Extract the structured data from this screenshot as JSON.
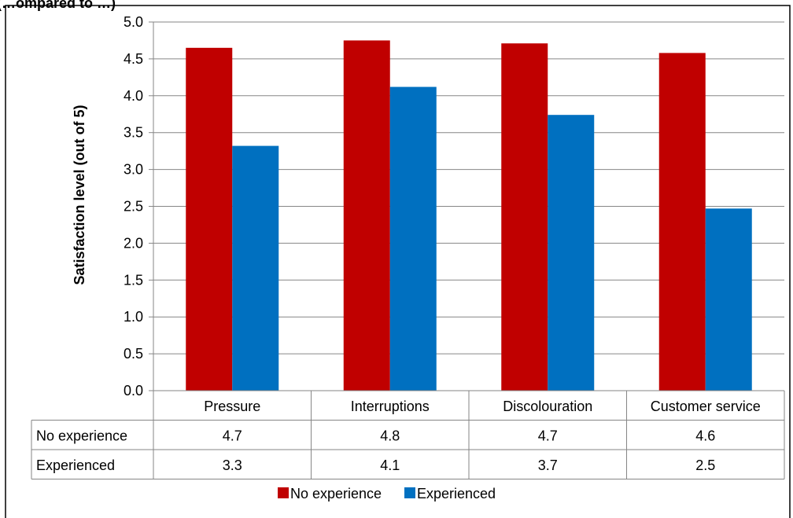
{
  "chart_data": {
    "type": "bar",
    "title": "(…ompared to …)",
    "ylabel": "Satisfaction level (out of 5)",
    "xlabel": "",
    "ylim": [
      0,
      5
    ],
    "y_ticks": [
      "0.0",
      "0.5",
      "1.0",
      "1.5",
      "2.0",
      "2.5",
      "3.0",
      "3.5",
      "4.0",
      "4.5",
      "5.0"
    ],
    "grid": true,
    "legend_position": "bottom",
    "categories": [
      "Pressure",
      "Interruptions",
      "Discolouration",
      "Customer service"
    ],
    "series": [
      {
        "name": "No experience",
        "color": "#c00000",
        "values": [
          4.65,
          4.75,
          4.71,
          4.58
        ],
        "table_values": [
          "4.7",
          "4.8",
          "4.7",
          "4.6"
        ]
      },
      {
        "name": "Experienced",
        "color": "#0070c0",
        "values": [
          3.32,
          4.12,
          3.74,
          2.47
        ],
        "table_values": [
          "3.3",
          "4.1",
          "3.7",
          "2.5"
        ]
      }
    ]
  }
}
